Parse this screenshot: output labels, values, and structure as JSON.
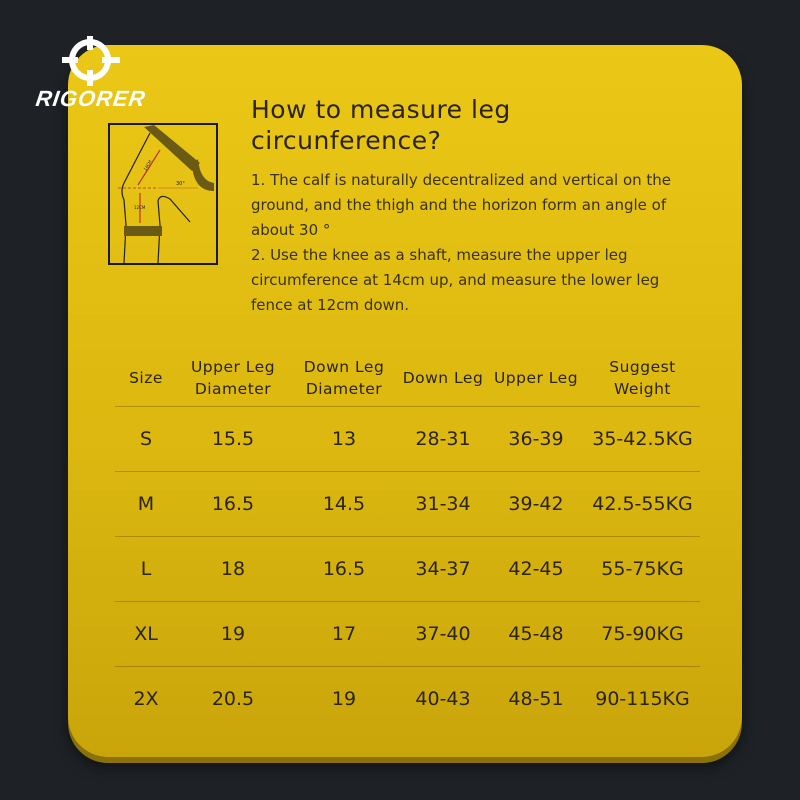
{
  "brand": {
    "name": "RIGORER",
    "logo_icon": "crosshair-icon"
  },
  "colors": {
    "background": "#1e2226",
    "card": "#e0bc12",
    "text": "#2a2410"
  },
  "title": "How to measure leg circunference?",
  "instructions": [
    "1. The calf is naturally decentralized and vertical on the ground, and the thigh and the horizon form an angle of about 30 °",
    "2. Use the knee as a shaft, measure the upper leg circumference at 14cm up, and measure the lower leg fence at 12cm down."
  ],
  "diagram": {
    "labels": [
      "14CM",
      "12CM",
      "30°"
    ]
  },
  "table": {
    "headers": [
      "Size",
      "Upper Leg Diameter",
      "Down Leg Diameter",
      "Down Leg",
      "Upper Leg",
      "Suggest Weight"
    ],
    "rows": [
      [
        "S",
        "15.5",
        "13",
        "28-31",
        "36-39",
        "35-42.5KG"
      ],
      [
        "M",
        "16.5",
        "14.5",
        "31-34",
        "39-42",
        "42.5-55KG"
      ],
      [
        "L",
        "18",
        "16.5",
        "34-37",
        "42-45",
        "55-75KG"
      ],
      [
        "XL",
        "19",
        "17",
        "37-40",
        "45-48",
        "75-90KG"
      ],
      [
        "2X",
        "20.5",
        "19",
        "40-43",
        "48-51",
        "90-115KG"
      ]
    ]
  }
}
